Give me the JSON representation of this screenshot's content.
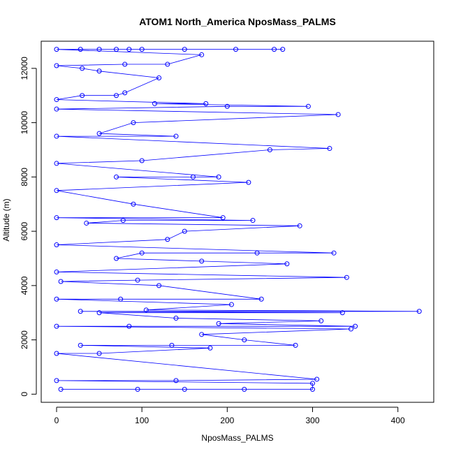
{
  "chart_data": {
    "type": "scatter",
    "title": "ATOM1 North_America NposMass_PALMS",
    "xlabel": "NposMass_PALMS",
    "ylabel": "Altitude (m)",
    "xlim": [
      -18,
      442
    ],
    "ylim": [
      -300,
      13000
    ],
    "xticks": [
      0,
      100,
      200,
      300,
      400
    ],
    "yticks": [
      0,
      2000,
      4000,
      6000,
      8000,
      10000,
      12000
    ],
    "color": "#0000ff",
    "series": [
      {
        "values": [
          [
            0,
            500
          ],
          [
            0,
            1500
          ],
          [
            0,
            2500
          ],
          [
            0,
            3500
          ],
          [
            0,
            4500
          ],
          [
            0,
            5500
          ],
          [
            0,
            6500
          ],
          [
            0,
            7500
          ],
          [
            0,
            8500
          ],
          [
            0,
            9500
          ],
          [
            0,
            10500
          ],
          [
            0,
            10850
          ],
          [
            0,
            12100
          ],
          [
            0,
            12700
          ],
          [
            5,
            180
          ],
          [
            5,
            4150
          ],
          [
            28,
            1800
          ],
          [
            28,
            3050
          ],
          [
            28,
            12700
          ],
          [
            30,
            11000
          ],
          [
            30,
            12000
          ],
          [
            35,
            6300
          ],
          [
            50,
            9600
          ],
          [
            50,
            11900
          ],
          [
            50,
            12700
          ],
          [
            50,
            3000
          ],
          [
            50,
            1500
          ],
          [
            70,
            8000
          ],
          [
            70,
            12700
          ],
          [
            70,
            11000
          ],
          [
            70,
            5000
          ],
          [
            75,
            3500
          ],
          [
            78,
            6400
          ],
          [
            80,
            11100
          ],
          [
            80,
            12150
          ],
          [
            85,
            2500
          ],
          [
            85,
            12700
          ],
          [
            90,
            10000
          ],
          [
            90,
            7000
          ],
          [
            95,
            180
          ],
          [
            95,
            4200
          ],
          [
            100,
            12700
          ],
          [
            100,
            8600
          ],
          [
            100,
            5200
          ],
          [
            105,
            3100
          ],
          [
            115,
            10700
          ],
          [
            120,
            4000
          ],
          [
            120,
            11650
          ],
          [
            130,
            5700
          ],
          [
            130,
            12150
          ],
          [
            135,
            1800
          ],
          [
            140,
            500
          ],
          [
            140,
            2800
          ],
          [
            140,
            9500
          ],
          [
            150,
            180
          ],
          [
            150,
            6000
          ],
          [
            150,
            12700
          ],
          [
            160,
            8000
          ],
          [
            170,
            2200
          ],
          [
            170,
            12500
          ],
          [
            170,
            4900
          ],
          [
            175,
            10700
          ],
          [
            180,
            1700
          ],
          [
            190,
            8000
          ],
          [
            190,
            2600
          ],
          [
            195,
            6500
          ],
          [
            200,
            10600
          ],
          [
            205,
            3300
          ],
          [
            210,
            12700
          ],
          [
            220,
            180
          ],
          [
            220,
            2000
          ],
          [
            225,
            7800
          ],
          [
            230,
            6400
          ],
          [
            235,
            5200
          ],
          [
            240,
            3500
          ],
          [
            250,
            9000
          ],
          [
            255,
            12700
          ],
          [
            265,
            12700
          ],
          [
            270,
            4800
          ],
          [
            280,
            1800
          ],
          [
            285,
            6200
          ],
          [
            295,
            10600
          ],
          [
            300,
            180
          ],
          [
            300,
            400
          ],
          [
            305,
            550
          ],
          [
            310,
            2700
          ],
          [
            320,
            9050
          ],
          [
            325,
            5200
          ],
          [
            330,
            10300
          ],
          [
            335,
            3000
          ],
          [
            340,
            4300
          ],
          [
            345,
            2400
          ],
          [
            350,
            2500
          ],
          [
            425,
            3050
          ]
        ]
      }
    ]
  }
}
